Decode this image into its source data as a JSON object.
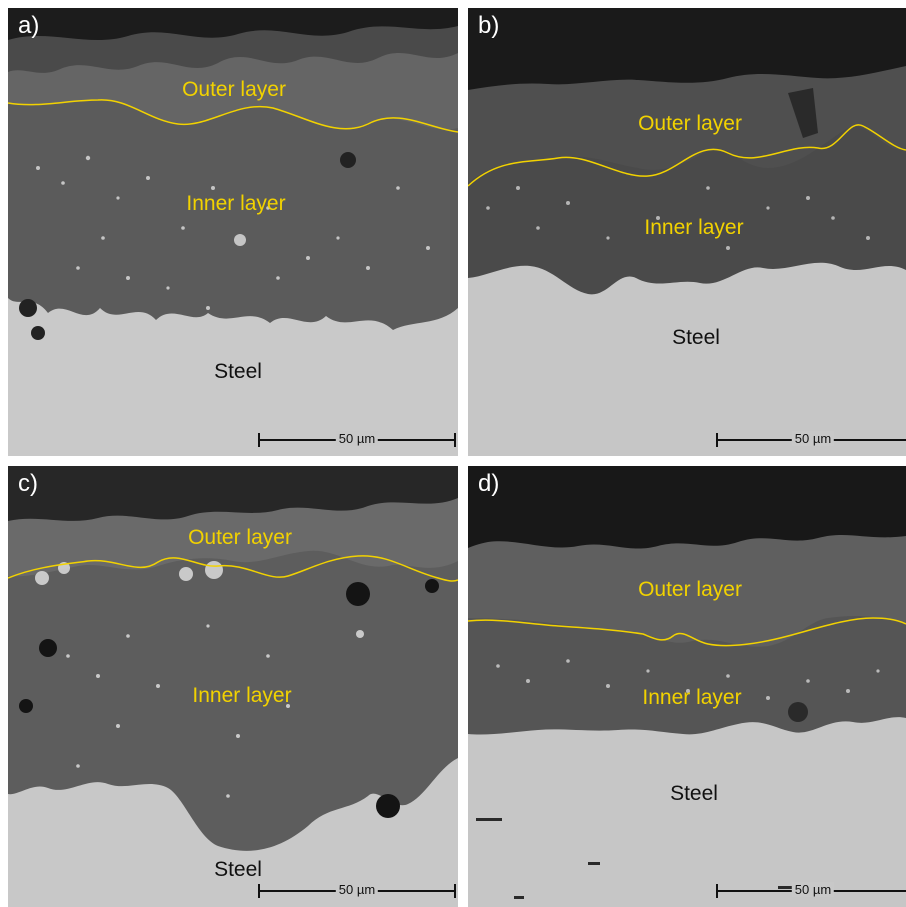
{
  "panels": [
    {
      "id": "a",
      "tag": "a)",
      "outer": "Outer layer",
      "inner": "Inner layer",
      "steel": "Steel",
      "scale": "50 µm"
    },
    {
      "id": "b",
      "tag": "b)",
      "outer": "Outer layer",
      "inner": "Inner layer",
      "steel": "Steel",
      "scale": "50 µm"
    },
    {
      "id": "c",
      "tag": "c)",
      "outer": "Outer layer",
      "inner": "Inner layer",
      "steel": "Steel",
      "scale": "50 µm"
    },
    {
      "id": "d",
      "tag": "d)",
      "outer": "Outer layer",
      "inner": "Inner layer",
      "steel": "Steel",
      "scale": "50 µm"
    }
  ],
  "colors": {
    "boundary_line": "#f2d200",
    "steel": "#c8c8c8",
    "oxide_inner": "#5a5a5a",
    "oxide_outer": "#656565",
    "mount": "#161616"
  }
}
